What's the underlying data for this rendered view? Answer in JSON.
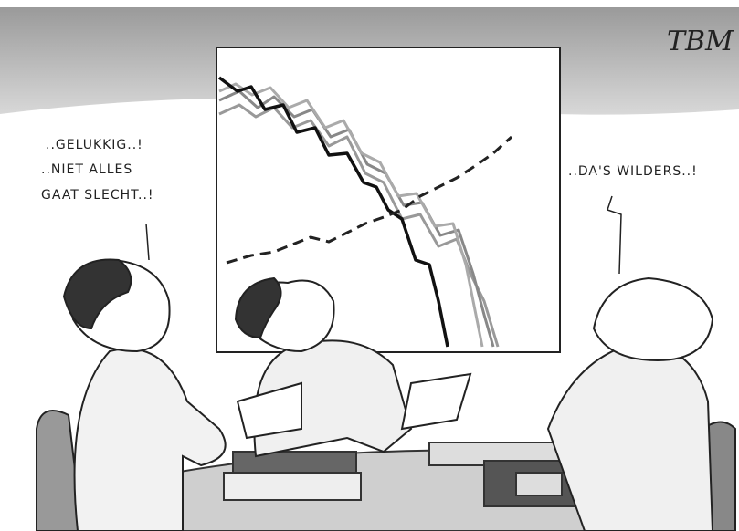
{
  "speech_left": {
    "lines": [
      "..GELUKKIG..!",
      "..NIET ALLES",
      "GAAT SLECHT..!"
    ]
  },
  "speech_right": {
    "text": "..DA'S WILDERS..!"
  },
  "signature": "TBM"
}
